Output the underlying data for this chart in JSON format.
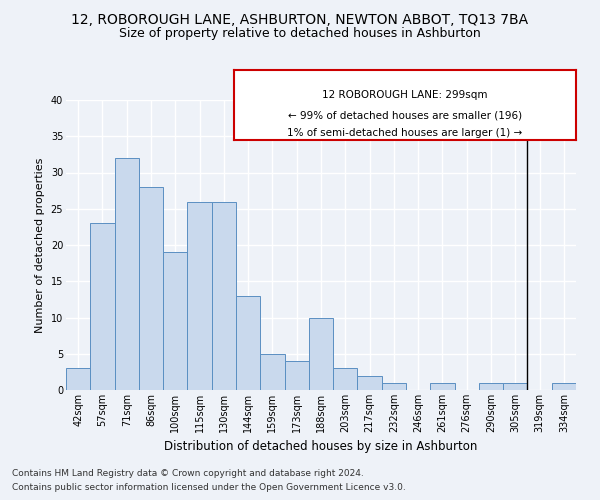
{
  "title": "12, ROBOROUGH LANE, ASHBURTON, NEWTON ABBOT, TQ13 7BA",
  "subtitle": "Size of property relative to detached houses in Ashburton",
  "xlabel": "Distribution of detached houses by size in Ashburton",
  "ylabel": "Number of detached properties",
  "bin_labels": [
    "42sqm",
    "57sqm",
    "71sqm",
    "86sqm",
    "100sqm",
    "115sqm",
    "130sqm",
    "144sqm",
    "159sqm",
    "173sqm",
    "188sqm",
    "203sqm",
    "217sqm",
    "232sqm",
    "246sqm",
    "261sqm",
    "276sqm",
    "290sqm",
    "305sqm",
    "319sqm",
    "334sqm"
  ],
  "values": [
    3,
    23,
    32,
    28,
    19,
    26,
    26,
    13,
    5,
    4,
    10,
    3,
    2,
    1,
    0,
    1,
    0,
    1,
    1,
    0,
    1
  ],
  "bar_color": "#c9d9ed",
  "bar_edge_color": "#5a8fc2",
  "vline_x": 18.5,
  "vline_color": "#000000",
  "annotation_text": "12 ROBOROUGH LANE: 299sqm\n← 99% of detached houses are smaller (196)\n1% of semi-detached houses are larger (1) →",
  "annotation_box_color": "#ffffff",
  "annotation_box_edge_color": "#cc0000",
  "ylim": [
    0,
    40
  ],
  "yticks": [
    0,
    5,
    10,
    15,
    20,
    25,
    30,
    35,
    40
  ],
  "footnote_line1": "Contains HM Land Registry data © Crown copyright and database right 2024.",
  "footnote_line2": "Contains public sector information licensed under the Open Government Licence v3.0.",
  "background_color": "#eef2f8",
  "grid_color": "#ffffff",
  "title_fontsize": 10,
  "subtitle_fontsize": 9,
  "xlabel_fontsize": 8.5,
  "ylabel_fontsize": 8,
  "tick_fontsize": 7,
  "annotation_fontsize": 7.5,
  "footnote_fontsize": 6.5
}
